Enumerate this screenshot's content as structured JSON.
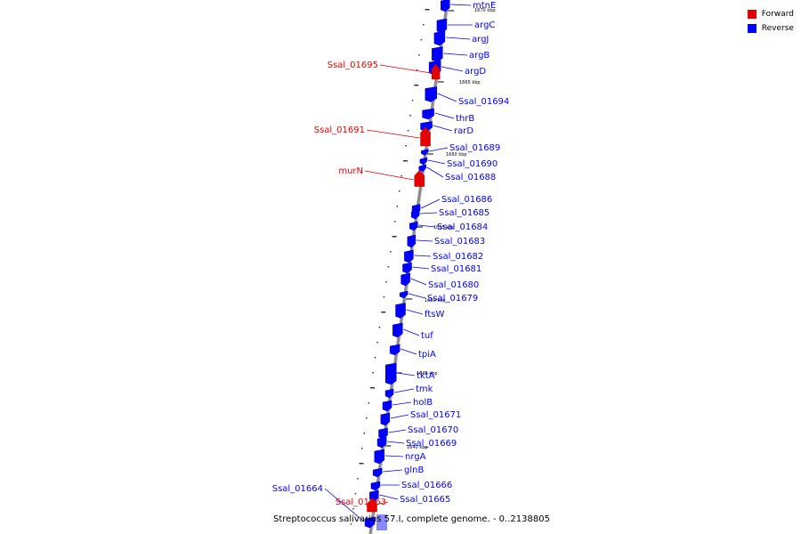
{
  "legend": {
    "forward_label": "Forward",
    "reverse_label": "Reverse",
    "forward_color": "#e60000",
    "reverse_color": "#0000ff"
  },
  "caption": "Streptococcus salivarius 57.I, complete genome. - 0..2138805",
  "kbp_unit": "kbp",
  "genes_reverse": [
    "mtnE",
    "argC",
    "argJ",
    "argB",
    "argD",
    "Ssal_01694",
    "thrB",
    "rarD",
    "Ssal_01689",
    "Ssal_01690",
    "Ssal_01688",
    "Ssal_01686",
    "Ssal_01685",
    "Ssal_01684",
    "Ssal_01683",
    "Ssal_01682",
    "Ssal_01681",
    "Ssal_01680",
    "Ssal_01679",
    "ftsW",
    "tuf",
    "tpiA",
    "tktA",
    "tmk",
    "holB",
    "Ssal_01671",
    "Ssal_01670",
    "Ssal_01669",
    "nrgA",
    "glnB",
    "Ssal_01666",
    "Ssal_01665",
    "Ssal_01664"
  ],
  "genes_forward": [
    "Ssal_01695",
    "Ssal_01691",
    "murN",
    "Ssal_01663"
  ],
  "kbp_ticks": [
    "1670 kbp",
    "1665 kbp",
    "1660 kbp",
    "1655 kbp",
    "1650 kbp",
    "1645 kbp",
    "1640 kbp"
  ]
}
